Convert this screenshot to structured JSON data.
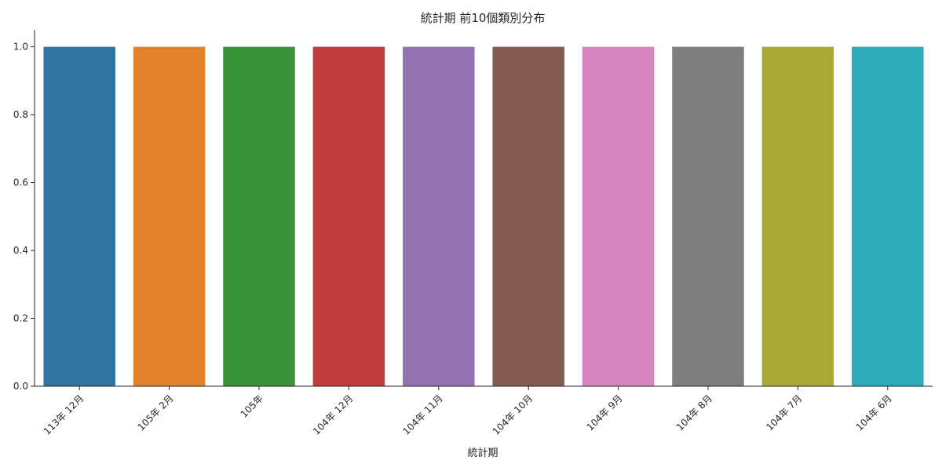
{
  "chart_data": {
    "type": "bar",
    "title": "統計期 前10個類別分布",
    "xlabel": "統計期",
    "ylabel": "",
    "categories": [
      "113年 12月",
      "105年 2月",
      "105年",
      "104年 12月",
      "104年 11月",
      "104年 10月",
      "104年 9月",
      "104年 8月",
      "104年 7月",
      "104年 6月"
    ],
    "values": [
      1,
      1,
      1,
      1,
      1,
      1,
      1,
      1,
      1,
      1
    ],
    "ylim": [
      0,
      1.05
    ],
    "yticks": [
      0.0,
      0.2,
      0.4,
      0.6,
      0.8,
      1.0
    ],
    "ytick_labels": [
      "0.0",
      "0.2",
      "0.4",
      "0.6",
      "0.8",
      "1.0"
    ],
    "colors": [
      "#3274a1",
      "#e1812c",
      "#3a923a",
      "#c03d3e",
      "#9372b2",
      "#845b53",
      "#d684bd",
      "#7f7f7f",
      "#a9aa35",
      "#2eabb8"
    ],
    "grid": false,
    "legend": "none"
  }
}
